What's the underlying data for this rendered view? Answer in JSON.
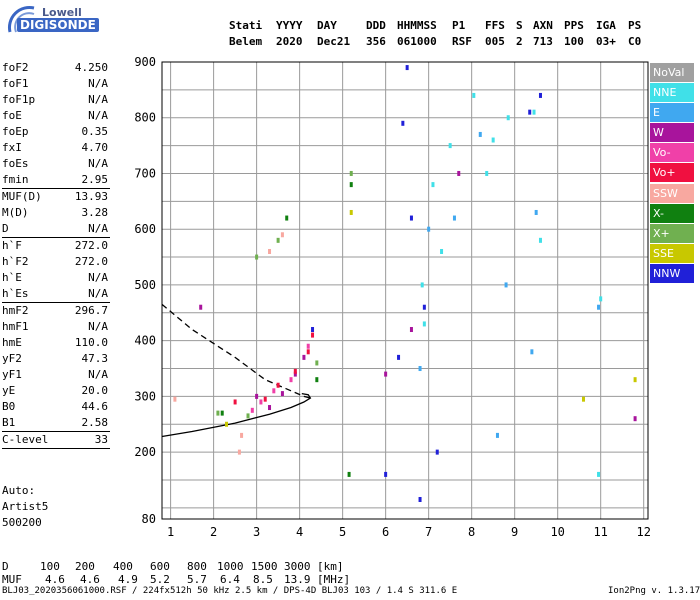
{
  "logo": {
    "line1": "Lowell",
    "line2": "DIGISONDE"
  },
  "header": {
    "labels": [
      "Stati",
      "YYYY",
      "DAY",
      "DDD",
      "HHMMSS",
      "P1",
      "FFS",
      "S",
      "AXN",
      "PPS",
      "IGA",
      "PS"
    ],
    "values": [
      "Belem",
      "2020",
      "Dec21",
      "356",
      "061000",
      "RSF",
      "005",
      "2",
      "713",
      "100",
      "03+",
      "C0"
    ]
  },
  "params": [
    {
      "name": "foF2",
      "value": "4.250"
    },
    {
      "name": "foF1",
      "value": "N/A"
    },
    {
      "name": "foF1p",
      "value": "N/A"
    },
    {
      "name": "foE",
      "value": "N/A"
    },
    {
      "name": "foEp",
      "value": "0.35"
    },
    {
      "name": "fxI",
      "value": "4.70"
    },
    {
      "name": "foEs",
      "value": "N/A"
    },
    {
      "name": "fmin",
      "value": "2.95"
    },
    {
      "name": "MUF(D)",
      "value": "13.93"
    },
    {
      "name": "M(D)",
      "value": "3.28"
    },
    {
      "name": "D",
      "value": "N/A"
    },
    {
      "name": "h`F",
      "value": "272.0"
    },
    {
      "name": "h`F2",
      "value": "272.0"
    },
    {
      "name": "h`E",
      "value": "N/A"
    },
    {
      "name": "h`Es",
      "value": "N/A"
    },
    {
      "name": "hmF2",
      "value": "296.7"
    },
    {
      "name": "hmF1",
      "value": "N/A"
    },
    {
      "name": "hmE",
      "value": "110.0"
    },
    {
      "name": "yF2",
      "value": "47.3"
    },
    {
      "name": "yF1",
      "value": "N/A"
    },
    {
      "name": "yE",
      "value": "20.0"
    },
    {
      "name": "B0",
      "value": "44.6"
    },
    {
      "name": "B1",
      "value": "2.58"
    },
    {
      "name": "C-level",
      "value": "33"
    }
  ],
  "auto": {
    "line1": "Auto:",
    "line2": "Artist5",
    "line3": "500200"
  },
  "legend": [
    {
      "label": "NoVal",
      "color": "#a0a0a0"
    },
    {
      "label": "NNE",
      "color": "#40e0e8"
    },
    {
      "label": "E",
      "color": "#40a8f0"
    },
    {
      "label": "W",
      "color": "#a8149c"
    },
    {
      "label": "Vo-",
      "color": "#f040a8"
    },
    {
      "label": "Vo+",
      "color": "#f01040"
    },
    {
      "label": "SSW",
      "color": "#f8a8a0"
    },
    {
      "label": "X-",
      "color": "#108010"
    },
    {
      "label": "X+",
      "color": "#70b050"
    },
    {
      "label": "SSE",
      "color": "#c8c800"
    },
    {
      "label": "NNW",
      "color": "#2020d8"
    }
  ],
  "bottom": {
    "d_label": "D",
    "d_values": [
      "100",
      "200",
      "400",
      "600",
      "800",
      "1000",
      "1500",
      "3000"
    ],
    "d_unit": "[km]",
    "muf_label": "MUF",
    "muf_values": [
      "4.6",
      "4.6",
      "4.9",
      "5.2",
      "5.7",
      "6.4",
      "8.5",
      "13.9"
    ],
    "muf_unit": "[MHz]"
  },
  "footer": {
    "left": "BLJ03_2020356061000.RSF / 224fx512h 50 kHz 2.5 km / DPS-4D BLJ03 103 / 1.4 S 311.6 E",
    "right": "Ion2Png v. 1.3.17"
  },
  "chart_data": {
    "type": "scatter",
    "title": "",
    "xlabel": "",
    "ylabel": "",
    "xlim": [
      0.8,
      12.1
    ],
    "ylim": [
      80,
      900
    ],
    "xticks": [
      "1",
      "2",
      "3",
      "4",
      "5",
      "6",
      "7",
      "8",
      "9",
      "10",
      "11",
      "12"
    ],
    "yticks": [
      "80",
      "200",
      "300",
      "400",
      "500",
      "600",
      "700",
      "800",
      "900"
    ],
    "grid": true,
    "series": [
      {
        "name": "profile",
        "style": "solid",
        "x": [
          0.8,
          1.5,
          2.5,
          3.3,
          3.8,
          4.1,
          4.25,
          4.2,
          4.05
        ],
        "y": [
          228,
          237,
          252,
          268,
          280,
          290,
          297,
          303,
          305
        ]
      },
      {
        "name": "topside",
        "style": "dashed",
        "x": [
          0.8,
          1.5,
          2.5,
          3.2,
          3.8,
          4.1,
          4.25
        ],
        "y": [
          465,
          420,
          370,
          330,
          310,
          300,
          297
        ]
      },
      {
        "name": "NNE",
        "color": "#40e0e8",
        "x": [
          6.9,
          6.85,
          7.1,
          7.3,
          7.5,
          8.05,
          8.35,
          8.5,
          8.85,
          9.45,
          9.6,
          11.0,
          10.95
        ],
        "y": [
          430,
          500,
          680,
          560,
          750,
          840,
          700,
          760,
          800,
          810,
          580,
          475,
          160
        ]
      },
      {
        "name": "E",
        "color": "#40a8f0",
        "x": [
          6.8,
          7.0,
          7.6,
          8.2,
          8.8,
          9.4,
          9.5,
          10.95,
          8.6
        ],
        "y": [
          350,
          600,
          620,
          770,
          500,
          380,
          630,
          460,
          230
        ]
      },
      {
        "name": "W",
        "color": "#a8149c",
        "x": [
          3.0,
          3.3,
          3.6,
          3.9,
          4.1,
          6.0,
          7.7,
          6.6,
          11.8,
          1.7
        ],
        "y": [
          300,
          280,
          305,
          340,
          370,
          340,
          700,
          420,
          260,
          460
        ]
      },
      {
        "name": "Vo-",
        "color": "#f040a8",
        "x": [
          3.1,
          3.4,
          3.8,
          4.2,
          2.9
        ],
        "y": [
          290,
          310,
          330,
          390,
          275
        ]
      },
      {
        "name": "Vo+",
        "color": "#f01040",
        "x": [
          3.2,
          3.5,
          3.9,
          4.2,
          4.3,
          2.5
        ],
        "y": [
          295,
          320,
          345,
          380,
          410,
          290
        ]
      },
      {
        "name": "SSW",
        "color": "#f8a8a0",
        "x": [
          2.6,
          2.65,
          1.1,
          3.3,
          3.6
        ],
        "y": [
          200,
          230,
          295,
          560,
          590
        ]
      },
      {
        "name": "X-",
        "color": "#108010",
        "x": [
          5.2,
          5.15,
          2.2,
          3.7,
          4.4
        ],
        "y": [
          680,
          160,
          270,
          620,
          330
        ]
      },
      {
        "name": "X+",
        "color": "#70b050",
        "x": [
          5.2,
          3.0,
          3.5,
          4.4,
          2.1,
          2.8
        ],
        "y": [
          700,
          550,
          580,
          360,
          270,
          265
        ]
      },
      {
        "name": "SSE",
        "color": "#c8c800",
        "x": [
          5.2,
          10.6,
          11.8,
          2.3
        ],
        "y": [
          630,
          295,
          330,
          250
        ]
      },
      {
        "name": "NNW",
        "color": "#2020d8",
        "x": [
          6.5,
          6.6,
          6.9,
          7.2,
          6.3,
          6.0,
          6.4,
          9.6,
          9.35,
          6.8,
          4.3
        ],
        "y": [
          890,
          620,
          460,
          200,
          370,
          160,
          790,
          840,
          810,
          115,
          420
        ]
      }
    ]
  }
}
